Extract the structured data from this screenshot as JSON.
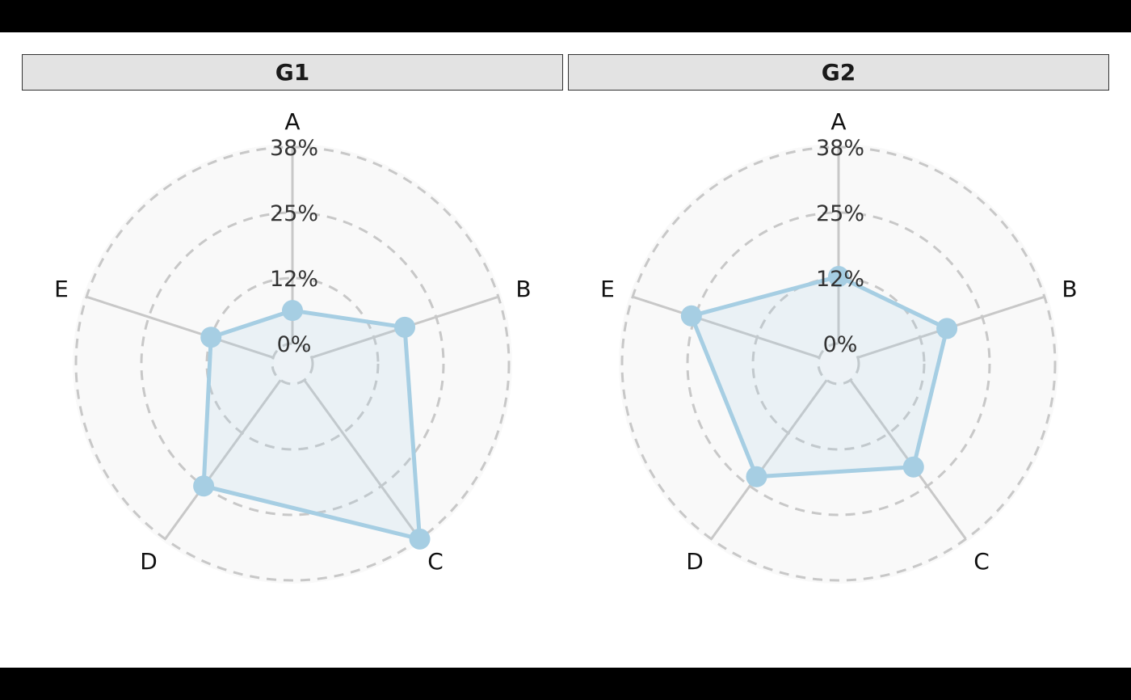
{
  "chart_data": {
    "type": "radar",
    "title": "",
    "axes": [
      "A",
      "B",
      "C",
      "D",
      "E"
    ],
    "rlabels": [
      "0%",
      "12%",
      "25%",
      "38%"
    ],
    "rticks": [
      0,
      12.5,
      25,
      37.5
    ],
    "rlim": [
      0,
      37.5
    ],
    "panels": [
      {
        "name": "G1",
        "values": [
          6.3,
          18.7,
          37.5,
          25.0,
          12.5
        ]
      },
      {
        "name": "G2",
        "values": [
          12.8,
          17.9,
          20.5,
          22.8,
          25.7
        ]
      }
    ],
    "series_color": "#a6cee3",
    "grid_color": "#c8c8c8",
    "panel_bg": "#f9f9f9"
  },
  "panels": {
    "g1": {
      "title": "G1"
    },
    "g2": {
      "title": "G2"
    }
  }
}
